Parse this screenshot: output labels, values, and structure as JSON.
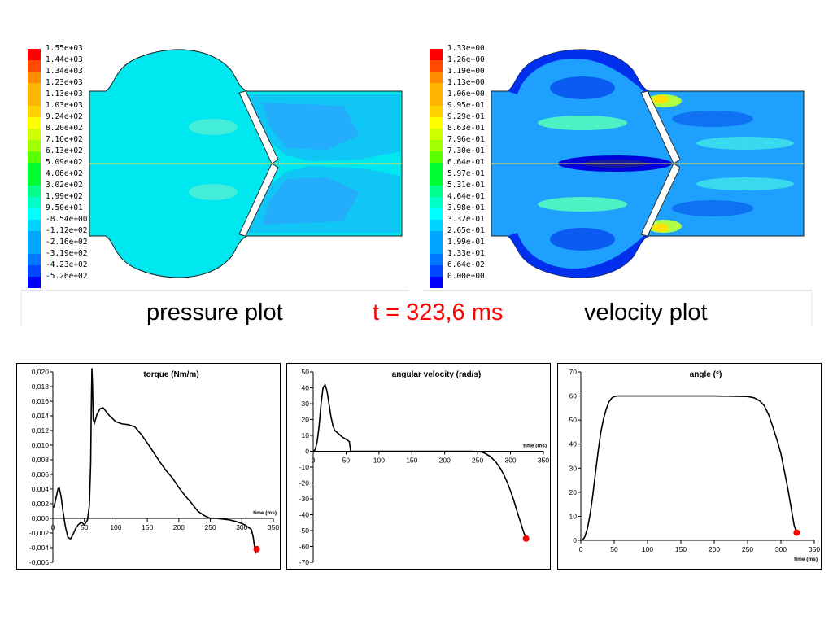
{
  "captions": {
    "pressure": "pressure plot",
    "time": "t = 323,6 ms",
    "velocity": "velocity plot"
  },
  "colormap": [
    "#ff0000",
    "#ff4a00",
    "#ff8c00",
    "#ffb400",
    "#ffd200",
    "#ffff00",
    "#d2ff00",
    "#a0ff00",
    "#5aff00",
    "#00ff32",
    "#00ff8c",
    "#00ffc8",
    "#00ffff",
    "#00d2ff",
    "#00a5ff",
    "#0078ff",
    "#0046ff",
    "#0000ff"
  ],
  "pressure_legend": [
    "1.55e+03",
    "1.44e+03",
    "1.34e+03",
    "1.23e+03",
    "1.13e+03",
    "1.03e+03",
    "9.24e+02",
    "8.20e+02",
    "7.16e+02",
    "6.13e+02",
    "5.09e+02",
    "4.06e+02",
    "3.02e+02",
    "1.99e+02",
    "9.50e+01",
    "-8.54e+00",
    "-1.12e+02",
    "-2.16e+02",
    "-3.19e+02",
    "-4.23e+02",
    "-5.26e+02"
  ],
  "velocity_legend": [
    "1.33e+00",
    "1.26e+00",
    "1.19e+00",
    "1.13e+00",
    "1.06e+00",
    "9.95e-01",
    "9.29e-01",
    "8.63e-01",
    "7.96e-01",
    "7.30e-01",
    "6.64e-01",
    "5.97e-01",
    "5.31e-01",
    "4.64e-01",
    "3.98e-01",
    "3.32e-01",
    "2.65e-01",
    "1.99e-01",
    "1.33e-01",
    "6.64e-02",
    "0.00e+00"
  ],
  "chart_data": [
    {
      "type": "line",
      "title": "torque (Nm/m)",
      "xlabel": "time (ms)",
      "xlim": [
        0,
        350
      ],
      "ylim": [
        -0.006,
        0.02
      ],
      "x_ticks": [
        "0",
        "50",
        "100",
        "150",
        "200",
        "250",
        "300",
        "350"
      ],
      "y_ticks": [
        "0,020",
        "0,018",
        "0,016",
        "0,014",
        "0,012",
        "0,010",
        "0,008",
        "0,006",
        "0,004",
        "0,002",
        "0,000",
        "-0,002",
        "-0,004",
        "-0,006"
      ],
      "series": [
        {
          "x": [
            0,
            2,
            5,
            8,
            10,
            13,
            16,
            20,
            24,
            28,
            32,
            36,
            40,
            45,
            50,
            55,
            58,
            60,
            61,
            62,
            63,
            64,
            66,
            70,
            75,
            80,
            90,
            100,
            110,
            120,
            130,
            140,
            150,
            160,
            170,
            180,
            190,
            200,
            210,
            220,
            230,
            240,
            250,
            255,
            260,
            270,
            280,
            290,
            300,
            305,
            310,
            315,
            318,
            320,
            322,
            323.6
          ],
          "y": [
            0.0015,
            0.0016,
            0.0028,
            0.004,
            0.0042,
            0.003,
            0.001,
            -0.0012,
            -0.0026,
            -0.0028,
            -0.0022,
            -0.0014,
            -0.0009,
            -0.0005,
            -0.0009,
            -0.0002,
            0.0018,
            0.0075,
            0.015,
            0.0205,
            0.018,
            0.0135,
            0.013,
            0.0142,
            0.015,
            0.0151,
            0.014,
            0.0132,
            0.0129,
            0.0128,
            0.0125,
            0.0115,
            0.0103,
            0.009,
            0.0077,
            0.0065,
            0.0055,
            0.0042,
            0.0031,
            0.0021,
            0.001,
            0.0004,
            0.0,
            0.0,
            0.0,
            -0.0001,
            -0.0002,
            -0.0004,
            -0.0007,
            -0.0009,
            -0.0012,
            -0.0015,
            -0.0025,
            -0.0038,
            -0.0046,
            -0.0042
          ]
        }
      ],
      "marker": {
        "x": 323.6,
        "y": -0.0042,
        "color": "#ff0000"
      }
    },
    {
      "type": "line",
      "title": "angular velocity (rad/s)",
      "xlabel": "time (ms)",
      "xlim": [
        0,
        350
      ],
      "ylim": [
        -70,
        50
      ],
      "x_ticks": [
        "0",
        "50",
        "100",
        "150",
        "200",
        "250",
        "300",
        "350"
      ],
      "y_ticks": [
        "50",
        "40",
        "30",
        "20",
        "10",
        "0",
        "-10",
        "-20",
        "-30",
        "-40",
        "-50",
        "-60",
        "-70"
      ],
      "series": [
        {
          "x": [
            0,
            3,
            6,
            9,
            12,
            15,
            18,
            21,
            24,
            27,
            30,
            33,
            36,
            40,
            44,
            48,
            52,
            55,
            57,
            60,
            80,
            120,
            160,
            200,
            240,
            255,
            262,
            270,
            278,
            285,
            290,
            295,
            300,
            305,
            310,
            315,
            320,
            323.6
          ],
          "y": [
            0,
            1,
            6,
            16,
            30,
            40,
            42,
            38,
            30,
            22,
            16,
            13,
            12,
            10.5,
            9,
            8,
            7,
            6,
            0,
            0,
            0,
            0,
            0,
            0,
            0,
            -0.3,
            -1.5,
            -3.5,
            -7,
            -11,
            -15,
            -19.5,
            -25,
            -31,
            -38,
            -44.5,
            -51,
            -55
          ]
        }
      ],
      "marker": {
        "x": 323.6,
        "y": -55,
        "color": "#ff0000"
      }
    },
    {
      "type": "line",
      "title": "angle (°)",
      "xlabel": "time (ms)",
      "xlim": [
        0,
        350
      ],
      "ylim": [
        0,
        70
      ],
      "x_ticks": [
        "0",
        "50",
        "100",
        "150",
        "200",
        "250",
        "300",
        "350"
      ],
      "y_ticks": [
        "70",
        "60",
        "50",
        "40",
        "30",
        "20",
        "10",
        "0"
      ],
      "series": [
        {
          "x": [
            0,
            3,
            6,
            10,
            14,
            18,
            22,
            26,
            30,
            34,
            38,
            42,
            46,
            50,
            55,
            60,
            100,
            150,
            200,
            250,
            260,
            268,
            275,
            282,
            288,
            295,
            300,
            305,
            310,
            315,
            320,
            323.6
          ],
          "y": [
            0,
            0.2,
            1.5,
            5,
            11,
            19,
            28,
            37,
            45,
            50.5,
            54.5,
            57.5,
            59,
            59.8,
            60,
            60,
            60,
            60,
            60,
            59.8,
            59.2,
            58,
            56,
            52,
            47,
            41,
            36,
            29,
            22,
            14,
            6,
            3.2
          ]
        }
      ],
      "marker": {
        "x": 323.6,
        "y": 3.2,
        "color": "#ff0000"
      }
    }
  ]
}
